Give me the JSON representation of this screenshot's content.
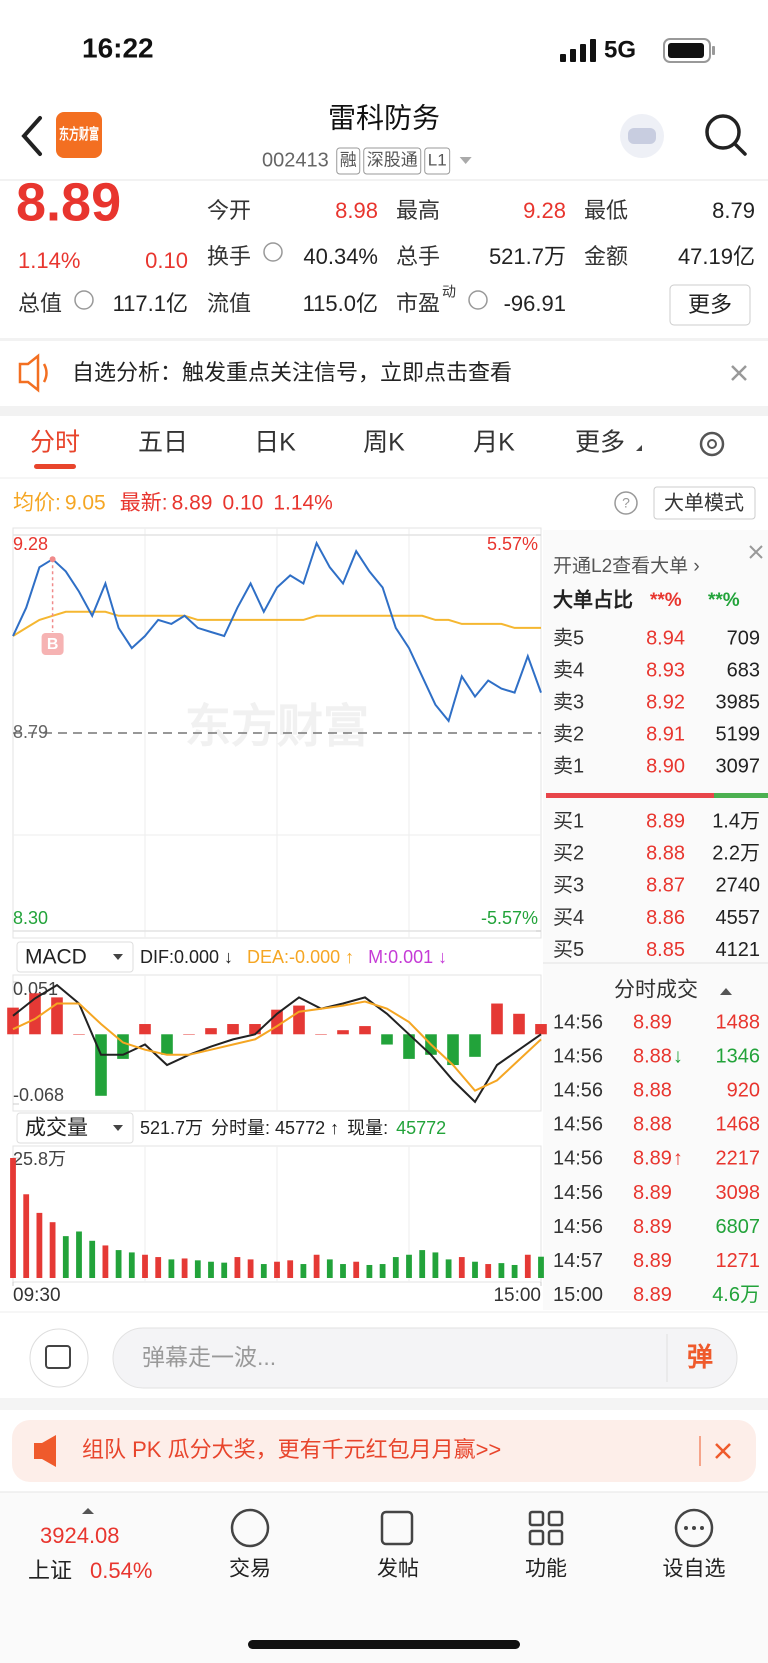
{
  "status_bar": {
    "time": "16:22",
    "network": "5G"
  },
  "header": {
    "logo": "东方财富",
    "title": "雷科防务",
    "code": "002413",
    "tags": [
      "融",
      "深股通",
      "L1"
    ]
  },
  "quote": {
    "price": "8.89",
    "change_pct": "1.14%",
    "change": "0.10",
    "color": "#e8352e",
    "fields": [
      {
        "label": "今开",
        "value": "8.98",
        "color": "#e8352e"
      },
      {
        "label": "最高",
        "value": "9.28",
        "color": "#e8352e"
      },
      {
        "label": "最低",
        "value": "8.79",
        "color": "#222222"
      },
      {
        "label": "换手",
        "value": "40.34%",
        "color": "#222222"
      },
      {
        "label": "总手",
        "value": "521.7万",
        "color": "#222222"
      },
      {
        "label": "金额",
        "value": "47.19亿",
        "color": "#222222"
      },
      {
        "label": "总值",
        "value": "117.1亿",
        "color": "#222222"
      },
      {
        "label": "流值",
        "value": "115.0亿",
        "color": "#222222"
      },
      {
        "label": "市盈",
        "label_sup": "动",
        "value": "-96.91",
        "color": "#222222"
      }
    ],
    "more": "更多"
  },
  "notice": "自选分析：触发重点关注信号，立即点击查看",
  "tabs": [
    "分时",
    "五日",
    "日K",
    "周K",
    "月K",
    "更多"
  ],
  "info_line": {
    "avg": "9.05",
    "latest": "8.89",
    "change": "0.10",
    "change_pct": "1.14%",
    "mode_button": "大单模式"
  },
  "chart_data": [
    {
      "type": "line",
      "watermark": "东方财富",
      "xlim": [
        0,
        240
      ],
      "x": [
        0,
        6,
        12,
        18,
        24,
        30,
        36,
        42,
        48,
        54,
        60,
        66,
        72,
        78,
        84,
        90,
        96,
        102,
        108,
        114,
        120,
        126,
        132,
        138,
        144,
        150,
        156,
        162,
        168,
        174,
        180,
        186,
        192,
        198,
        204,
        210,
        216,
        222,
        228,
        234,
        240
      ],
      "ylim": [
        8.3,
        9.28
      ],
      "yticks": [
        {
          "value": 8.3,
          "label": "8.30"
        },
        8.79,
        9.28
      ],
      "y2lim": [
        -5.57,
        5.57
      ],
      "y2ticks": [
        {
          "value": -5.57,
          "label": "-5.57%"
        },
        {
          "value": 5.57,
          "label": "5.57%"
        }
      ],
      "series": [
        {
          "name": "最新:",
          "color": "#2f6fc6",
          "values": [
            9.03,
            9.1,
            9.2,
            9.22,
            9.19,
            9.14,
            9.08,
            9.16,
            9.05,
            9.0,
            9.03,
            9.07,
            9.06,
            9.08,
            9.05,
            9.04,
            9.03,
            9.1,
            9.16,
            9.09,
            9.15,
            9.18,
            9.16,
            9.26,
            9.2,
            9.16,
            9.24,
            9.19,
            9.15,
            9.05,
            9.0,
            8.93,
            8.86,
            8.82,
            8.93,
            8.88,
            8.92,
            8.9,
            8.89,
            8.98,
            8.89
          ]
        },
        {
          "name": "均价:",
          "color": "#f5b731",
          "values": [
            9.03,
            9.05,
            9.07,
            9.08,
            9.09,
            9.09,
            9.09,
            9.09,
            9.08,
            9.08,
            9.08,
            9.08,
            9.08,
            9.08,
            9.07,
            9.07,
            9.07,
            9.07,
            9.07,
            9.07,
            9.07,
            9.07,
            9.07,
            9.08,
            9.08,
            9.08,
            9.08,
            9.08,
            9.08,
            9.08,
            9.08,
            9.08,
            9.07,
            9.07,
            9.06,
            9.06,
            9.06,
            9.06,
            9.05,
            9.05,
            9.05
          ]
        }
      ],
      "annotations": [
        {
          "text": "B",
          "x": 18
        }
      ]
    },
    {
      "type": "macd",
      "title": "MACD",
      "xlim": [
        0,
        240
      ],
      "x": [
        0,
        10,
        20,
        30,
        40,
        50,
        60,
        70,
        80,
        90,
        100,
        110,
        120,
        130,
        140,
        150,
        160,
        170,
        180,
        190,
        200,
        210,
        220,
        230,
        240
      ],
      "ylim": [
        -0.068,
        0.051
      ],
      "yticks": [
        -0.068,
        0.051
      ],
      "series": [
        {
          "name": "DIF:0.000 ↓",
          "color": "#222222",
          "values": [
            0.018,
            0.035,
            0.048,
            0.03,
            -0.02,
            -0.02,
            -0.01,
            -0.03,
            -0.02,
            -0.012,
            -0.005,
            0.0,
            0.02,
            0.036,
            0.025,
            0.03,
            0.036,
            0.02,
            0.0,
            -0.02,
            -0.045,
            -0.066,
            -0.03,
            -0.015,
            0.0
          ]
        },
        {
          "name": "DEA:-0.000 ↑",
          "color": "#f5a623",
          "values": [
            0.005,
            0.015,
            0.03,
            0.03,
            0.01,
            -0.008,
            -0.015,
            -0.02,
            -0.02,
            -0.015,
            -0.01,
            -0.005,
            0.008,
            0.022,
            0.025,
            0.028,
            0.032,
            0.025,
            0.012,
            -0.01,
            -0.03,
            -0.055,
            -0.045,
            -0.025,
            -0.005
          ]
        },
        {
          "name": "M:0.001 ↓",
          "color": "#c53bd6",
          "type": "bar",
          "up_color": "#e53935",
          "down_color": "#22a33a",
          "values": [
            0.026,
            0.04,
            0.036,
            0.0,
            -0.06,
            -0.024,
            0.01,
            -0.02,
            0.0,
            0.006,
            0.01,
            0.01,
            0.024,
            0.028,
            0.0,
            0.004,
            0.008,
            -0.01,
            -0.024,
            -0.02,
            -0.03,
            -0.022,
            0.03,
            0.02,
            0.01
          ]
        }
      ]
    },
    {
      "type": "bar",
      "title": "成交量",
      "legend": [
        {
          "text": "521.7万",
          "color": "#222222"
        },
        {
          "text": "分时量: 45772 ↑",
          "color": "#222222"
        },
        {
          "text": "现量:",
          "color": "#222222"
        },
        {
          "text": "45772",
          "color": "#22a33a"
        }
      ],
      "up_color": "#e53935",
      "down_color": "#22a33a",
      "xlim": [
        0,
        240
      ],
      "x": [
        0,
        6,
        12,
        18,
        24,
        30,
        36,
        42,
        48,
        54,
        60,
        66,
        72,
        78,
        84,
        90,
        96,
        102,
        108,
        114,
        120,
        126,
        132,
        138,
        144,
        150,
        156,
        162,
        168,
        174,
        180,
        186,
        192,
        198,
        204,
        210,
        216,
        222,
        228,
        234,
        240
      ],
      "xticks": [
        {
          "value": 0,
          "label": "09:30"
        },
        {
          "value": 240,
          "label": "15:00"
        }
      ],
      "ylim": [
        0,
        258000
      ],
      "yticks": [
        {
          "value": 258000,
          "label": "25.8万"
        }
      ],
      "values": [
        258000,
        180000,
        140000,
        120000,
        90000,
        100000,
        80000,
        70000,
        60000,
        55000,
        50000,
        45000,
        40000,
        42000,
        38000,
        35000,
        33000,
        45000,
        40000,
        30000,
        35000,
        38000,
        30000,
        50000,
        40000,
        30000,
        35000,
        28000,
        30000,
        45000,
        50000,
        60000,
        55000,
        40000,
        45000,
        35000,
        30000,
        32000,
        28000,
        50000,
        45772
      ]
    }
  ],
  "order_book": {
    "title": "开通L2查看大单 ›",
    "ratio_label": "大单占比",
    "ratio_values": [
      {
        "text": "**%",
        "color": "#e8352e"
      },
      {
        "text": "**%",
        "color": "#22a33a"
      }
    ],
    "price_color": "#e8352e",
    "asks": [
      {
        "label": "卖5",
        "price": "8.94",
        "volume": "709"
      },
      {
        "label": "卖4",
        "price": "8.93",
        "volume": "683"
      },
      {
        "label": "卖3",
        "price": "8.92",
        "volume": "3985"
      },
      {
        "label": "卖2",
        "price": "8.91",
        "volume": "5199"
      },
      {
        "label": "卖1",
        "price": "8.90",
        "volume": "3097"
      }
    ],
    "bids": [
      {
        "label": "买1",
        "price": "8.89",
        "volume": "1.4万"
      },
      {
        "label": "买2",
        "price": "8.88",
        "volume": "2.2万"
      },
      {
        "label": "买3",
        "price": "8.87",
        "volume": "2740"
      },
      {
        "label": "买4",
        "price": "8.86",
        "volume": "4557"
      },
      {
        "label": "买5",
        "price": "8.85",
        "volume": "4121"
      }
    ]
  },
  "trades": {
    "title": "分时成交",
    "price_color": "#e8352e",
    "rows": [
      {
        "time": "14:56",
        "price": "8.89",
        "volume": "1488",
        "volume_color": "#e8352e"
      },
      {
        "time": "14:56",
        "price": "8.88",
        "arrow": "↓",
        "arrow_color": "#22a33a",
        "volume": "1346",
        "volume_color": "#22a33a"
      },
      {
        "time": "14:56",
        "price": "8.88",
        "volume": "920",
        "volume_color": "#e8352e"
      },
      {
        "time": "14:56",
        "price": "8.88",
        "volume": "1468",
        "volume_color": "#e8352e"
      },
      {
        "time": "14:56",
        "price": "8.89",
        "arrow": "↑",
        "arrow_color": "#e8352e",
        "volume": "2217",
        "volume_color": "#e8352e"
      },
      {
        "time": "14:56",
        "price": "8.89",
        "volume": "3098",
        "volume_color": "#e8352e"
      },
      {
        "time": "14:56",
        "price": "8.89",
        "volume": "6807",
        "volume_color": "#22a33a"
      },
      {
        "time": "14:57",
        "price": "8.89",
        "volume": "1271",
        "volume_color": "#e8352e"
      },
      {
        "time": "15:00",
        "price": "8.89",
        "volume": "4.6万",
        "volume_color": "#22a33a"
      }
    ]
  },
  "comment_bar": {
    "placeholder": "弹幕走一波...",
    "button": "弹"
  },
  "promo": "组队 PK 瓜分大奖，更有千元红包月月赢>>",
  "bottom_nav": {
    "index_value": "3924.08",
    "index_name": "上证",
    "index_change": "0.54%",
    "items": [
      "交易",
      "发帖",
      "功能",
      "设自选"
    ]
  }
}
